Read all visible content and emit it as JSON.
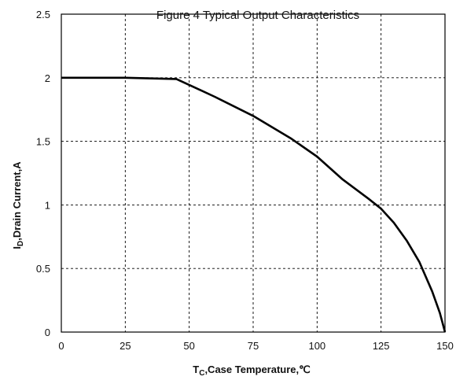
{
  "chart_data": {
    "type": "line",
    "title": "Figure    4    Typical Output Characteristics",
    "xlabel": {
      "main": "T",
      "sub": "C",
      "rest": ",Case Temperature,℃"
    },
    "ylabel": {
      "main": "I",
      "sub": "D",
      "rest": ",Drain Current,A"
    },
    "xlim": [
      0,
      150
    ],
    "ylim": [
      0,
      2.5
    ],
    "x_ticks": [
      0,
      25,
      50,
      75,
      100,
      125,
      150
    ],
    "y_ticks": [
      "0",
      "0.5",
      "1",
      "1.5",
      "2",
      "2.5"
    ],
    "grid": "dashed",
    "series": [
      {
        "x": [
          0,
          25,
          45,
          60,
          75,
          90,
          100,
          110,
          120,
          125,
          130,
          135,
          140,
          145,
          148,
          150
        ],
        "y": [
          2.0,
          2.0,
          1.99,
          1.85,
          1.7,
          1.52,
          1.38,
          1.2,
          1.05,
          0.97,
          0.86,
          0.72,
          0.55,
          0.32,
          0.15,
          0.0
        ]
      }
    ],
    "colors": {
      "line": "#000000",
      "axis": "#000000",
      "grid": "#000000"
    }
  }
}
